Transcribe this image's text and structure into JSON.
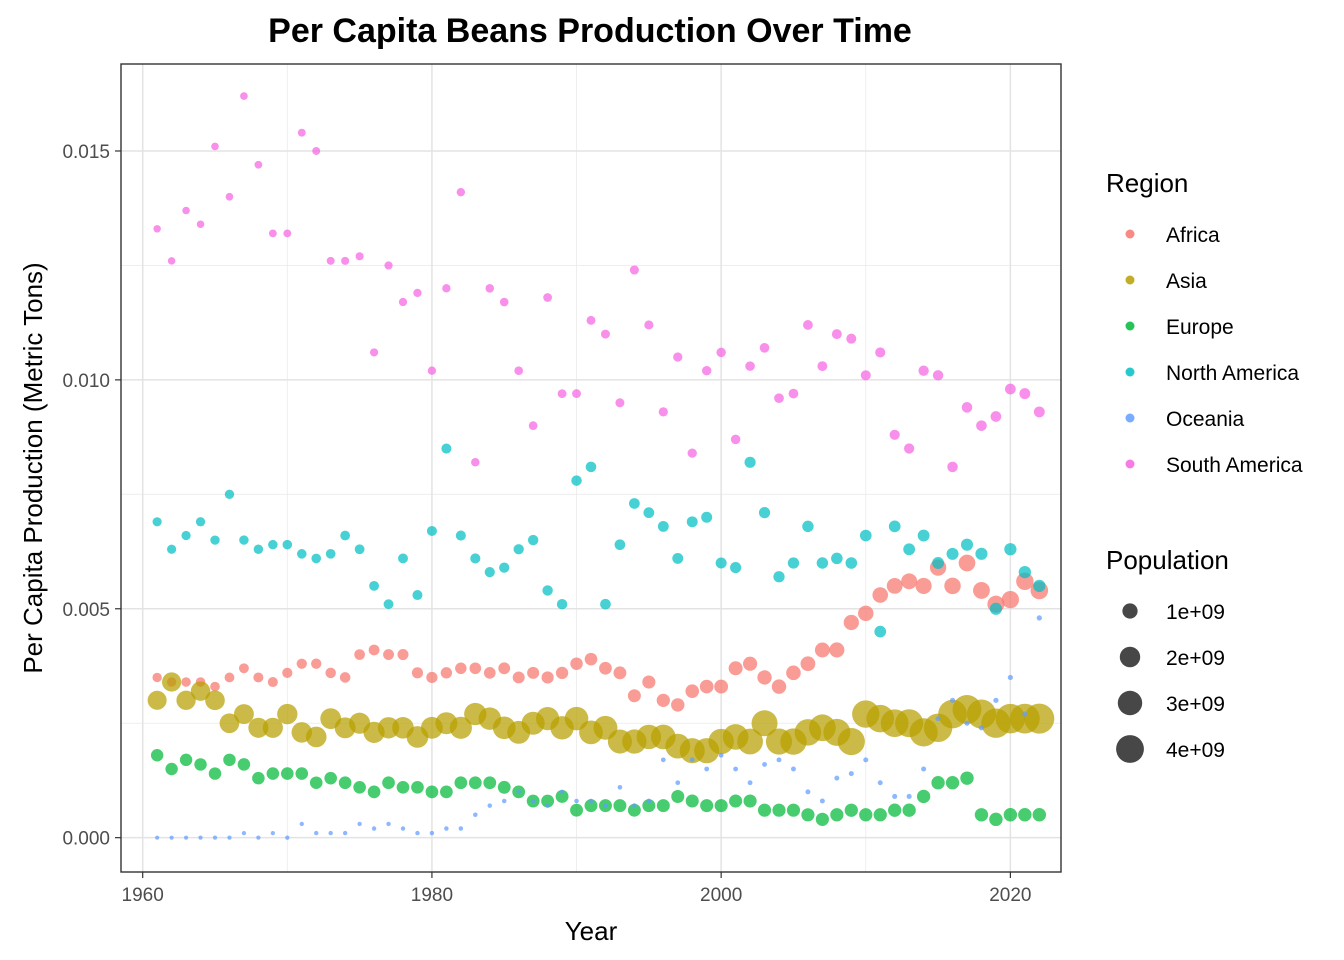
{
  "chart_data": {
    "type": "scatter",
    "title": "Per Capita Beans Production Over Time",
    "xlabel": "Year",
    "ylabel": "Per Capita Production (Metric Tons)",
    "xlim": [
      1958.5,
      2023.5
    ],
    "ylim": [
      -0.00075,
      0.0169
    ],
    "x_ticks": [
      1960,
      1980,
      2000,
      2020
    ],
    "x_tick_labels": [
      "1960",
      "1980",
      "2000",
      "2020"
    ],
    "y_ticks": [
      0.0,
      0.005,
      0.01,
      0.015
    ],
    "y_tick_labels": [
      "0.000",
      "0.005",
      "0.010",
      "0.015"
    ],
    "grid": true,
    "legend": {
      "placement": "right",
      "color_title": "Region",
      "size_title": "Population",
      "size_entries": [
        {
          "label": "1e+09",
          "value": 1000000000
        },
        {
          "label": "2e+09",
          "value": 2000000000
        },
        {
          "label": "3e+09",
          "value": 3000000000
        },
        {
          "label": "4e+09",
          "value": 4000000000
        }
      ]
    },
    "x": [
      1961,
      1962,
      1963,
      1964,
      1965,
      1966,
      1967,
      1968,
      1969,
      1970,
      1971,
      1972,
      1973,
      1974,
      1975,
      1976,
      1977,
      1978,
      1979,
      1980,
      1981,
      1982,
      1983,
      1984,
      1985,
      1986,
      1987,
      1988,
      1989,
      1990,
      1991,
      1992,
      1993,
      1994,
      1995,
      1996,
      1997,
      1998,
      1999,
      2000,
      2001,
      2002,
      2003,
      2004,
      2005,
      2006,
      2007,
      2008,
      2009,
      2010,
      2011,
      2012,
      2013,
      2014,
      2015,
      2016,
      2017,
      2018,
      2019,
      2020,
      2021,
      2022
    ],
    "series": [
      {
        "name": "Africa",
        "color": "#F8766D",
        "population_start": 285000000,
        "population_end": 1420000000,
        "values": [
          0.0035,
          0.0034,
          0.0034,
          0.0034,
          0.0033,
          0.0035,
          0.0037,
          0.0035,
          0.0034,
          0.0036,
          0.0038,
          0.0038,
          0.0036,
          0.0035,
          0.004,
          0.0041,
          0.004,
          0.004,
          0.0036,
          0.0035,
          0.0036,
          0.0037,
          0.0037,
          0.0036,
          0.0037,
          0.0035,
          0.0036,
          0.0035,
          0.0036,
          0.0038,
          0.0039,
          0.0037,
          0.0036,
          0.0031,
          0.0034,
          0.003,
          0.0029,
          0.0032,
          0.0033,
          0.0033,
          0.0037,
          0.0038,
          0.0035,
          0.0033,
          0.0036,
          0.0038,
          0.0041,
          0.0041,
          0.0047,
          0.0049,
          0.0053,
          0.0055,
          0.0056,
          0.0055,
          0.0059,
          0.0055,
          0.006,
          0.0054,
          0.0051,
          0.0052,
          0.0056,
          0.0054
        ]
      },
      {
        "name": "Asia",
        "color": "#B79F00",
        "population_start": 1700000000,
        "population_end": 4720000000,
        "values": [
          0.003,
          0.0034,
          0.003,
          0.0032,
          0.003,
          0.0025,
          0.0027,
          0.0024,
          0.0024,
          0.0027,
          0.0023,
          0.0022,
          0.0026,
          0.0024,
          0.0025,
          0.0023,
          0.0024,
          0.0024,
          0.0022,
          0.0024,
          0.0025,
          0.0024,
          0.0027,
          0.0026,
          0.0024,
          0.0023,
          0.0025,
          0.0026,
          0.0024,
          0.0026,
          0.0023,
          0.0024,
          0.0021,
          0.0021,
          0.0022,
          0.0022,
          0.002,
          0.0019,
          0.0019,
          0.0021,
          0.0022,
          0.0021,
          0.0025,
          0.0021,
          0.0021,
          0.0023,
          0.0024,
          0.0023,
          0.0021,
          0.0027,
          0.0026,
          0.0025,
          0.0025,
          0.0023,
          0.0024,
          0.0027,
          0.0028,
          0.0027,
          0.0025,
          0.0026,
          0.0026,
          0.0026
        ]
      },
      {
        "name": "Europe",
        "color": "#00BA38",
        "population_start": 604000000,
        "population_end": 744000000,
        "values": [
          0.0018,
          0.0015,
          0.0017,
          0.0016,
          0.0014,
          0.0017,
          0.0016,
          0.0013,
          0.0014,
          0.0014,
          0.0014,
          0.0012,
          0.0013,
          0.0012,
          0.0011,
          0.001,
          0.0012,
          0.0011,
          0.0011,
          0.001,
          0.001,
          0.0012,
          0.0012,
          0.0012,
          0.0011,
          0.001,
          0.0008,
          0.0008,
          0.0009,
          0.0006,
          0.0007,
          0.0007,
          0.0007,
          0.0006,
          0.0007,
          0.0007,
          0.0009,
          0.0008,
          0.0007,
          0.0007,
          0.0008,
          0.0008,
          0.0006,
          0.0006,
          0.0006,
          0.0005,
          0.0004,
          0.0005,
          0.0006,
          0.0005,
          0.0005,
          0.0006,
          0.0006,
          0.0009,
          0.0012,
          0.0012,
          0.0013,
          0.0005,
          0.0004,
          0.0005,
          0.0005,
          0.0005
        ]
      },
      {
        "name": "North America",
        "color": "#00BFC4",
        "population_start": 270000000,
        "population_end": 600000000,
        "values": [
          0.0069,
          0.0063,
          0.0066,
          0.0069,
          0.0065,
          0.0075,
          0.0065,
          0.0063,
          0.0064,
          0.0064,
          0.0062,
          0.0061,
          0.0062,
          0.0066,
          0.0063,
          0.0055,
          0.0051,
          0.0061,
          0.0053,
          0.0067,
          0.0085,
          0.0066,
          0.0061,
          0.0058,
          0.0059,
          0.0063,
          0.0065,
          0.0054,
          0.0051,
          0.0078,
          0.0081,
          0.0051,
          0.0064,
          0.0073,
          0.0071,
          0.0068,
          0.0061,
          0.0069,
          0.007,
          0.006,
          0.0059,
          0.0082,
          0.0071,
          0.0057,
          0.006,
          0.0068,
          0.006,
          0.0061,
          0.006,
          0.0066,
          0.0045,
          0.0068,
          0.0063,
          0.0066,
          0.006,
          0.0062,
          0.0064,
          0.0062,
          0.005,
          0.0063,
          0.0058,
          0.0055
        ]
      },
      {
        "name": "Oceania",
        "color": "#619CFF",
        "population_start": 15700000,
        "population_end": 45000000,
        "values": [
          0.0,
          0.0,
          0.0,
          0.0,
          0.0,
          0.0,
          0.0001,
          0.0,
          0.0001,
          0.0,
          0.0003,
          0.0001,
          0.0001,
          0.0001,
          0.0003,
          0.0002,
          0.0003,
          0.0002,
          0.0001,
          0.0001,
          0.0002,
          0.0002,
          0.0005,
          0.0007,
          0.0008,
          0.001,
          0.0008,
          0.0007,
          0.001,
          0.0008,
          0.0008,
          0.0007,
          0.0011,
          0.0007,
          0.0008,
          0.0017,
          0.0012,
          0.0017,
          0.0015,
          0.0018,
          0.0015,
          0.0012,
          0.0016,
          0.0017,
          0.0015,
          0.001,
          0.0008,
          0.0013,
          0.0014,
          0.0017,
          0.0012,
          0.0009,
          0.0009,
          0.0015,
          0.0026,
          0.003,
          0.0025,
          0.0024,
          0.003,
          0.0035,
          0.0027,
          0.0048
        ]
      },
      {
        "name": "South America",
        "color": "#F564E3",
        "population_start": 148000000,
        "population_end": 436000000,
        "values": [
          0.0133,
          0.0126,
          0.0137,
          0.0134,
          0.0151,
          0.014,
          0.0162,
          0.0147,
          0.0132,
          0.0132,
          0.0154,
          0.015,
          0.0126,
          0.0126,
          0.0127,
          0.0106,
          0.0125,
          0.0117,
          0.0119,
          0.0102,
          0.012,
          0.0141,
          0.0082,
          0.012,
          0.0117,
          0.0102,
          0.009,
          0.0118,
          0.0097,
          0.0097,
          0.0113,
          0.011,
          0.0095,
          0.0124,
          0.0112,
          0.0093,
          0.0105,
          0.0084,
          0.0102,
          0.0106,
          0.0087,
          0.0103,
          0.0107,
          0.0096,
          0.0097,
          0.0112,
          0.0103,
          0.011,
          0.0109,
          0.0101,
          0.0106,
          0.0088,
          0.0085,
          0.0102,
          0.0101,
          0.0081,
          0.0094,
          0.009,
          0.0092,
          0.0098,
          0.0097,
          0.0093
        ]
      }
    ]
  }
}
